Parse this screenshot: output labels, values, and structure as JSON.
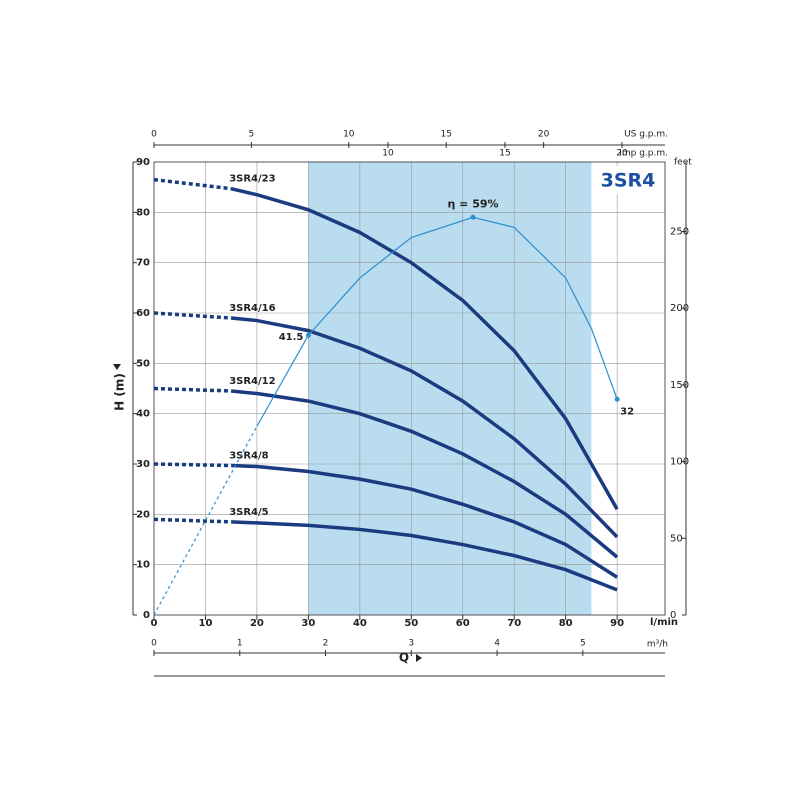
{
  "chart_data": {
    "type": "line",
    "title": "3SR4",
    "x_label": "l/min",
    "x2_label": "m³/h",
    "top_label": "US g.p.m.",
    "top2_label": "Imp g.p.m.",
    "y_label": "H (m)",
    "y2_label": "feet",
    "q_label": "Q",
    "xlim": [
      0,
      99.3
    ],
    "xticks": [
      0,
      10,
      20,
      30,
      40,
      50,
      60,
      70,
      80,
      90
    ],
    "x2lim": [
      0,
      5.958
    ],
    "x2ticks": [
      0,
      1,
      2,
      3,
      4,
      5
    ],
    "toplim": [
      0,
      26.23
    ],
    "topticks": [
      0,
      5,
      10,
      15,
      20
    ],
    "top2lim": [
      0,
      21.84
    ],
    "top2ticks": [
      10,
      15,
      20
    ],
    "ylim": [
      0,
      90
    ],
    "yticks": [
      0,
      10,
      20,
      30,
      40,
      50,
      60,
      70,
      80,
      90
    ],
    "y2lim": [
      0,
      295.3
    ],
    "y2ticks": [
      0,
      50,
      100,
      150,
      200,
      250
    ],
    "eta_lim": [
      0,
      67.2
    ],
    "highlight_range": [
      30,
      85
    ],
    "highlight_color": "#b9dcef",
    "grid": true,
    "x": [
      0,
      15,
      20,
      30,
      40,
      50,
      60,
      70,
      80,
      90
    ],
    "dashed_until": 15,
    "series": [
      {
        "name": "3SR4/23",
        "color": "#1b3b80",
        "values": [
          86.5,
          84.7,
          83.5,
          80.5,
          76,
          70,
          62.5,
          52.5,
          39,
          21
        ]
      },
      {
        "name": "3SR4/16",
        "color": "#1b3b80",
        "values": [
          60,
          59,
          58.5,
          56.5,
          53,
          48.5,
          42.5,
          35,
          26,
          15.5
        ]
      },
      {
        "name": "3SR4/12",
        "color": "#1b3b80",
        "values": [
          45,
          44.5,
          44,
          42.5,
          40,
          36.5,
          32,
          26.5,
          20,
          11.5
        ]
      },
      {
        "name": "3SR4/8",
        "color": "#1b3b80",
        "values": [
          30,
          29.7,
          29.5,
          28.5,
          27,
          25,
          22,
          18.5,
          14,
          7.5
        ]
      },
      {
        "name": "3SR4/5",
        "color": "#1b3b80",
        "values": [
          19,
          18.5,
          18.3,
          17.8,
          17,
          15.8,
          14,
          11.8,
          9,
          5
        ]
      },
      {
        "axis": "eta",
        "color": "#2b8fd0",
        "dashed_until": 20,
        "x": [
          0,
          20,
          30,
          40,
          50,
          62,
          70,
          80,
          85,
          90
        ],
        "values": [
          0,
          28,
          41.5,
          50,
          56,
          59,
          57.5,
          50,
          42.5,
          32
        ],
        "value_labels": [
          null,
          null,
          "41.5",
          null,
          null,
          "η = 59%",
          null,
          null,
          null,
          "32"
        ]
      }
    ]
  }
}
